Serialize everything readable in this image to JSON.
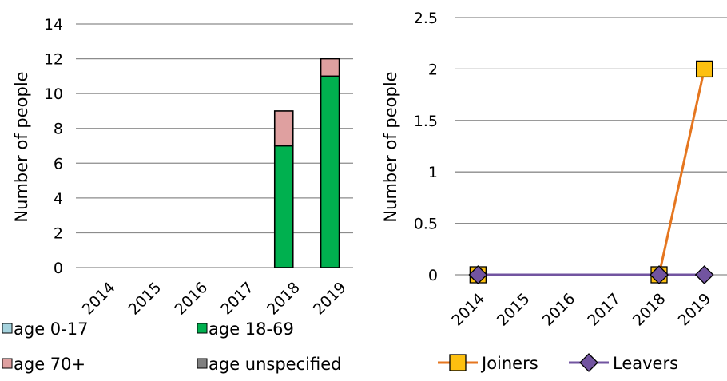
{
  "chart_data": [
    {
      "type": "bar",
      "stacked": true,
      "ylabel": "Number of people",
      "categories": [
        "2014",
        "2015",
        "2016",
        "2017",
        "2018",
        "2019"
      ],
      "ylim": [
        0,
        14
      ],
      "yticks": [
        "0",
        "2",
        "4",
        "6",
        "8",
        "10",
        "12",
        "14"
      ],
      "grid": true,
      "legend_position": "bottom",
      "series": [
        {
          "name": "age 0-17",
          "color": "#a5d3de",
          "values": [
            0,
            0,
            0,
            0,
            0,
            0
          ]
        },
        {
          "name": "age 18-69",
          "color": "#00b04f",
          "values": [
            0,
            0,
            0,
            0,
            7,
            11
          ]
        },
        {
          "name": "age 70+",
          "color": "#dfa0a0",
          "values": [
            0,
            0,
            0,
            0,
            2,
            1
          ]
        },
        {
          "name": "age unspecified",
          "color": "#7f7f7f",
          "values": [
            0,
            0,
            0,
            0,
            0,
            0
          ]
        }
      ]
    },
    {
      "type": "line",
      "ylabel": "Number of people",
      "categories": [
        "2014",
        "2015",
        "2016",
        "2017",
        "2018",
        "2019"
      ],
      "ylim": [
        0,
        2.5
      ],
      "yticks": [
        "0",
        "0.5",
        "1",
        "1.5",
        "2",
        "2.5"
      ],
      "grid": true,
      "legend_position": "bottom",
      "series": [
        {
          "name": "Joiners",
          "color": "#e5761f",
          "marker_color": "#fdc010",
          "marker": "square",
          "points": [
            {
              "x": "2014",
              "y": 0
            },
            {
              "x": "2018",
              "y": 0
            },
            {
              "x": "2019",
              "y": 2
            }
          ]
        },
        {
          "name": "Leavers",
          "color": "#7254a0",
          "marker_color": "#7254a0",
          "marker": "diamond",
          "points": [
            {
              "x": "2014",
              "y": 0
            },
            {
              "x": "2018",
              "y": 0
            },
            {
              "x": "2019",
              "y": 0
            }
          ]
        }
      ]
    }
  ]
}
